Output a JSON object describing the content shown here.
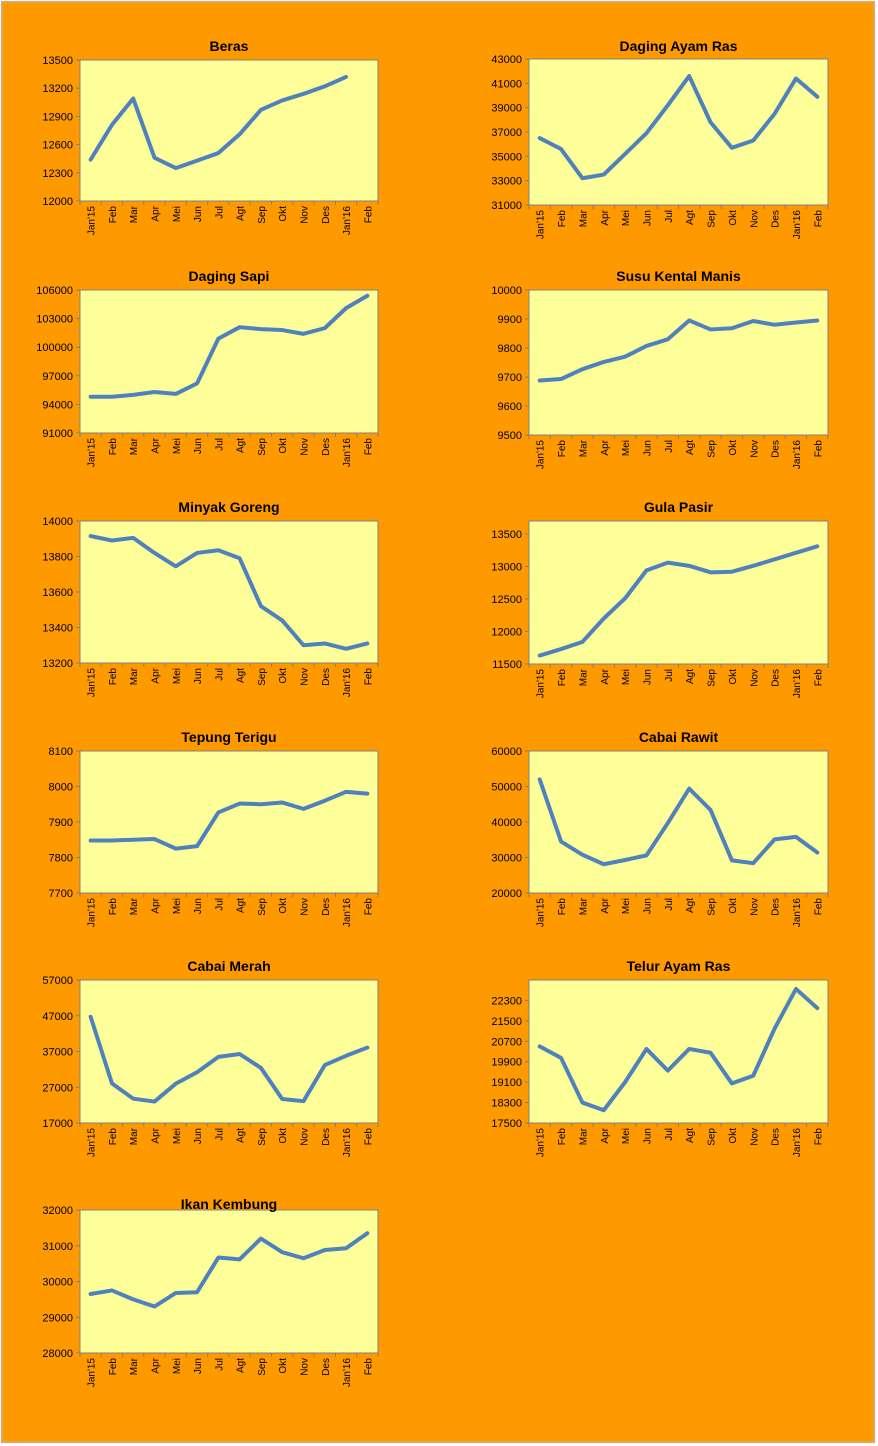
{
  "colors": {
    "background": "#FF9900",
    "plot_area": "#FFFF99",
    "line": "#4F81BD",
    "axis": "#808080"
  },
  "chart_data": [
    {
      "type": "line",
      "title": "Beras",
      "categories": [
        "Jan'15",
        "Feb",
        "Mar",
        "Apr",
        "Mei",
        "Jun",
        "Jul",
        "Agt",
        "Sep",
        "Okt",
        "Nov",
        "Des",
        "Jan'16",
        "Feb"
      ],
      "yticks": [
        12000,
        12300,
        12600,
        12900,
        13200,
        13500
      ],
      "ylim": [
        12000,
        13500
      ],
      "values": [
        12440,
        12810,
        13090,
        12460,
        12350,
        12430,
        12510,
        12710,
        12970,
        13070,
        13140,
        13220,
        13320,
        null
      ]
    },
    {
      "type": "line",
      "title": "Daging Ayam Ras",
      "categories": [
        "Jan'15",
        "Feb",
        "Mar",
        "Apr",
        "Mei",
        "Jun",
        "Jul",
        "Agt",
        "Sep",
        "Okt",
        "Nov",
        "Des",
        "Jan'16",
        "Feb"
      ],
      "yticks": [
        31000,
        33000,
        35000,
        37000,
        39000,
        41000,
        43000
      ],
      "ylim": [
        31000,
        43000
      ],
      "values": [
        36500,
        35600,
        33200,
        33500,
        35200,
        36900,
        39200,
        41600,
        37800,
        35700,
        36300,
        38500,
        41400,
        39900
      ]
    },
    {
      "type": "line",
      "title": "Daging Sapi",
      "categories": [
        "Jan'15",
        "Feb",
        "Mar",
        "Apr",
        "Mei",
        "Jun",
        "Jul",
        "Agt",
        "Sep",
        "Okt",
        "Nov",
        "Des",
        "Jan'16",
        "Feb"
      ],
      "yticks": [
        91000,
        94000,
        97000,
        100000,
        103000,
        106000
      ],
      "ylim": [
        91000,
        106000
      ],
      "values": [
        94800,
        94800,
        95000,
        95300,
        95100,
        96200,
        100900,
        102100,
        101900,
        101800,
        101400,
        102000,
        104100,
        105400
      ]
    },
    {
      "type": "line",
      "title": "Susu Kental Manis",
      "categories": [
        "Jan'15",
        "Feb",
        "Mar",
        "Apr",
        "Mei",
        "Jun",
        "Jul",
        "Agt",
        "Sep",
        "Okt",
        "Nov",
        "Des",
        "Jan'16",
        "Feb"
      ],
      "yticks": [
        9500,
        9600,
        9700,
        9800,
        9900,
        10000
      ],
      "ylim": [
        9500,
        10000
      ],
      "values": [
        9688,
        9693,
        9727,
        9752,
        9770,
        9807,
        9830,
        9895,
        9864,
        9868,
        9893,
        9880,
        9888,
        9895
      ]
    },
    {
      "type": "line",
      "title": "Minyak Goreng",
      "categories": [
        "Jan'15",
        "Feb",
        "Mar",
        "Apr",
        "Mei",
        "Jun",
        "Jul",
        "Agt",
        "Sep",
        "Okt",
        "Nov",
        "Des",
        "Jan'16",
        "Feb"
      ],
      "yticks": [
        13200,
        13400,
        13600,
        13800,
        14000
      ],
      "ylim": [
        13200,
        14000
      ],
      "values": [
        13915,
        13890,
        13905,
        13820,
        13745,
        13820,
        13835,
        13790,
        13520,
        13440,
        13300,
        13310,
        13280,
        13310
      ]
    },
    {
      "type": "line",
      "title": "Gula Pasir",
      "categories": [
        "Jan'15",
        "Feb",
        "Mar",
        "Apr",
        "Mei",
        "Jun",
        "Jul",
        "Agt",
        "Sep",
        "Okt",
        "Nov",
        "Des",
        "Jan'16",
        "Feb"
      ],
      "yticks": [
        11500,
        12000,
        12500,
        13000,
        13500
      ],
      "ylim": [
        11500,
        13700
      ],
      "values": [
        11630,
        11730,
        11840,
        12200,
        12510,
        12940,
        13060,
        13010,
        12910,
        12920,
        13010,
        13110,
        13210,
        13310
      ]
    },
    {
      "type": "line",
      "title": "Tepung Terigu",
      "categories": [
        "Jan'15",
        "Feb",
        "Mar",
        "Apr",
        "Mei",
        "Jun",
        "Jul",
        "Agt",
        "Sep",
        "Okt",
        "Nov",
        "Des",
        "Jan'16",
        "Feb"
      ],
      "yticks": [
        7700,
        7800,
        7900,
        8000,
        8100
      ],
      "ylim": [
        7700,
        8100
      ],
      "values": [
        7848,
        7848,
        7850,
        7852,
        7825,
        7832,
        7927,
        7952,
        7950,
        7955,
        7937,
        7960,
        7985,
        7980
      ]
    },
    {
      "type": "line",
      "title": "Cabai Rawit",
      "categories": [
        "Jan'15",
        "Feb",
        "Mar",
        "Apr",
        "Mei",
        "Jun",
        "Jul",
        "Agt",
        "Sep",
        "Okt",
        "Nov",
        "Des",
        "Jan'16",
        "Feb"
      ],
      "yticks": [
        20000,
        30000,
        40000,
        50000,
        60000
      ],
      "ylim": [
        20000,
        60000
      ],
      "values": [
        52000,
        34500,
        30800,
        28100,
        29300,
        30600,
        39700,
        49400,
        43400,
        29200,
        28400,
        35100,
        35800,
        31400
      ]
    },
    {
      "type": "line",
      "title": "Cabai Merah",
      "categories": [
        "Jan'15",
        "Feb",
        "Mar",
        "Apr",
        "Mei",
        "Jun",
        "Jul",
        "Agt",
        "Sep",
        "Okt",
        "Nov",
        "Des",
        "Jan'16",
        "Feb"
      ],
      "yticks": [
        17000,
        27000,
        37000,
        47000,
        57000
      ],
      "ylim": [
        17000,
        57000
      ],
      "values": [
        46700,
        28100,
        23800,
        23000,
        28000,
        31200,
        35500,
        36300,
        32400,
        23700,
        23100,
        33200,
        35800,
        38100
      ]
    },
    {
      "type": "line",
      "title": "Telur Ayam Ras",
      "categories": [
        "Jan'15",
        "Feb",
        "Mar",
        "Apr",
        "Mei",
        "Jun",
        "Jul",
        "Agt",
        "Sep",
        "Okt",
        "Nov",
        "Des",
        "Jan'16",
        "Feb"
      ],
      "yticks": [
        17500,
        18300,
        19100,
        19900,
        20700,
        21500,
        22300
      ],
      "ylim": [
        17500,
        23100
      ],
      "values": [
        20500,
        20050,
        18300,
        18000,
        19100,
        20400,
        19550,
        20400,
        20250,
        19050,
        19350,
        21200,
        22750,
        22000
      ]
    },
    {
      "type": "line",
      "title": "Ikan Kembung",
      "categories": [
        "Jan'15",
        "Feb",
        "Mar",
        "Apr",
        "Mei",
        "Jun",
        "Jul",
        "Agt",
        "Sep",
        "Okt",
        "Nov",
        "Des",
        "Jan'16",
        "Feb"
      ],
      "yticks": [
        28000,
        29000,
        30000,
        31000,
        32000
      ],
      "ylim": [
        28000,
        32000
      ],
      "values": [
        29650,
        29750,
        29500,
        29300,
        29680,
        29700,
        30670,
        30620,
        31200,
        30820,
        30650,
        30880,
        30930,
        31350
      ]
    }
  ]
}
